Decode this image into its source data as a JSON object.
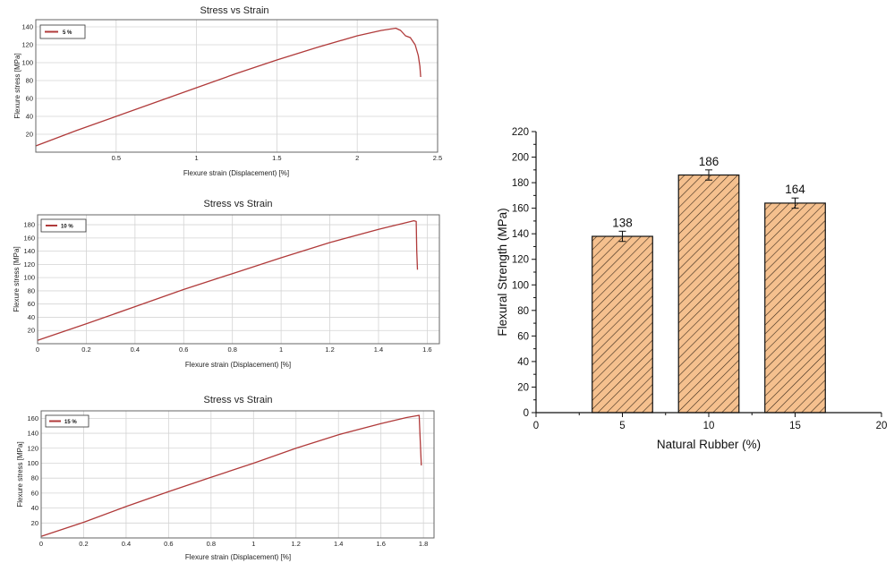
{
  "chart_data": [
    {
      "type": "line",
      "title": "Stress vs Strain",
      "xlabel": "Flexure strain (Displacement) [%]",
      "ylabel": "Flexure stress [MPa]",
      "xlim": [
        0,
        2.5
      ],
      "ylim": [
        0,
        148
      ],
      "xticks": [
        0.5,
        1,
        1.5,
        2,
        2.5
      ],
      "xtick_labels": [
        "0.5",
        "1",
        "1.5",
        "2",
        "2.5"
      ],
      "yticks": [
        20,
        40,
        60,
        80,
        100,
        120,
        140
      ],
      "ytick_labels": [
        "20",
        "40",
        "60",
        "80",
        "100",
        "120",
        "140"
      ],
      "grid": true,
      "legend": "top-left",
      "series": [
        {
          "name": "5 %",
          "color": "#b03a3a",
          "x": [
            0,
            0.25,
            0.5,
            0.75,
            1.0,
            1.25,
            1.5,
            1.75,
            2.0,
            2.15,
            2.24,
            2.27,
            2.3,
            2.33,
            2.36,
            2.38,
            2.39,
            2.395
          ],
          "y": [
            7,
            24,
            40,
            56,
            72,
            88,
            103,
            117,
            130,
            136,
            138.5,
            136,
            130,
            128,
            120,
            108,
            96,
            84
          ]
        }
      ]
    },
    {
      "type": "line",
      "title": "Stress vs Strain",
      "xlabel": "Flexure strain (Displacement) [%]",
      "ylabel": "Flexure stress [MPa]",
      "xlim": [
        0,
        1.65
      ],
      "ylim": [
        0,
        195
      ],
      "xticks": [
        0,
        0.2,
        0.4,
        0.6,
        0.8,
        1,
        1.2,
        1.4,
        1.6
      ],
      "xtick_labels": [
        "0",
        "0.2",
        "0.4",
        "0.6",
        "0.8",
        "1",
        "1.2",
        "1.4",
        "1.6"
      ],
      "yticks": [
        20,
        40,
        60,
        80,
        100,
        120,
        140,
        160,
        180
      ],
      "ytick_labels": [
        "20",
        "40",
        "60",
        "80",
        "100",
        "120",
        "140",
        "160",
        "180"
      ],
      "grid": true,
      "legend": "top-left",
      "series": [
        {
          "name": "10 %",
          "color": "#b03a3a",
          "x": [
            0,
            0.2,
            0.4,
            0.6,
            0.8,
            1.0,
            1.2,
            1.4,
            1.5,
            1.545,
            1.555,
            1.557,
            1.56
          ],
          "y": [
            5,
            30,
            56,
            82,
            106,
            130,
            153,
            173,
            182,
            186,
            185,
            140,
            112
          ]
        }
      ]
    },
    {
      "type": "line",
      "title": "Stress vs Strain",
      "xlabel": "Flexure strain (Displacement) [%]",
      "ylabel": "Flexure stress [MPa]",
      "xlim": [
        0,
        1.85
      ],
      "ylim": [
        0,
        170
      ],
      "xticks": [
        0,
        0.2,
        0.4,
        0.6,
        0.8,
        1,
        1.2,
        1.4,
        1.6,
        1.8
      ],
      "xtick_labels": [
        "0",
        "0.2",
        "0.4",
        "0.6",
        "0.8",
        "1",
        "1.2",
        "1.4",
        "1.6",
        "1.8"
      ],
      "yticks": [
        20,
        40,
        60,
        80,
        100,
        120,
        140,
        160
      ],
      "ytick_labels": [
        "20",
        "40",
        "60",
        "80",
        "100",
        "120",
        "140",
        "160"
      ],
      "grid": true,
      "legend": "top-left",
      "series": [
        {
          "name": "15 %",
          "color": "#b03a3a",
          "x": [
            0,
            0.2,
            0.4,
            0.6,
            0.8,
            1.0,
            1.2,
            1.4,
            1.6,
            1.72,
            1.78,
            1.785,
            1.79
          ],
          "y": [
            2,
            21,
            42,
            62,
            81,
            100,
            120,
            138,
            153,
            161,
            164,
            130,
            97
          ]
        }
      ]
    },
    {
      "type": "bar",
      "title": "",
      "xlabel": "Natural Rubber (%)",
      "ylabel": "Flexural Strength (MPa)",
      "xlim": [
        0,
        20
      ],
      "ylim": [
        0,
        220
      ],
      "xticks": [
        0,
        5,
        10,
        15,
        20
      ],
      "xtick_labels": [
        "0",
        "5",
        "10",
        "15",
        "20"
      ],
      "yticks": [
        0,
        20,
        40,
        60,
        80,
        100,
        120,
        140,
        160,
        180,
        200,
        220
      ],
      "ytick_labels": [
        "0",
        "20",
        "40",
        "60",
        "80",
        "100",
        "120",
        "140",
        "160",
        "180",
        "200",
        "220"
      ],
      "bar_color": "#f5c08e",
      "hatch_color": "#3a2a1a",
      "bars": [
        {
          "x": 5,
          "value": 138,
          "error": 4,
          "label": "138"
        },
        {
          "x": 10,
          "value": 186,
          "error": 4,
          "label": "186"
        },
        {
          "x": 15,
          "value": 164,
          "error": 4,
          "label": "164"
        }
      ]
    }
  ]
}
